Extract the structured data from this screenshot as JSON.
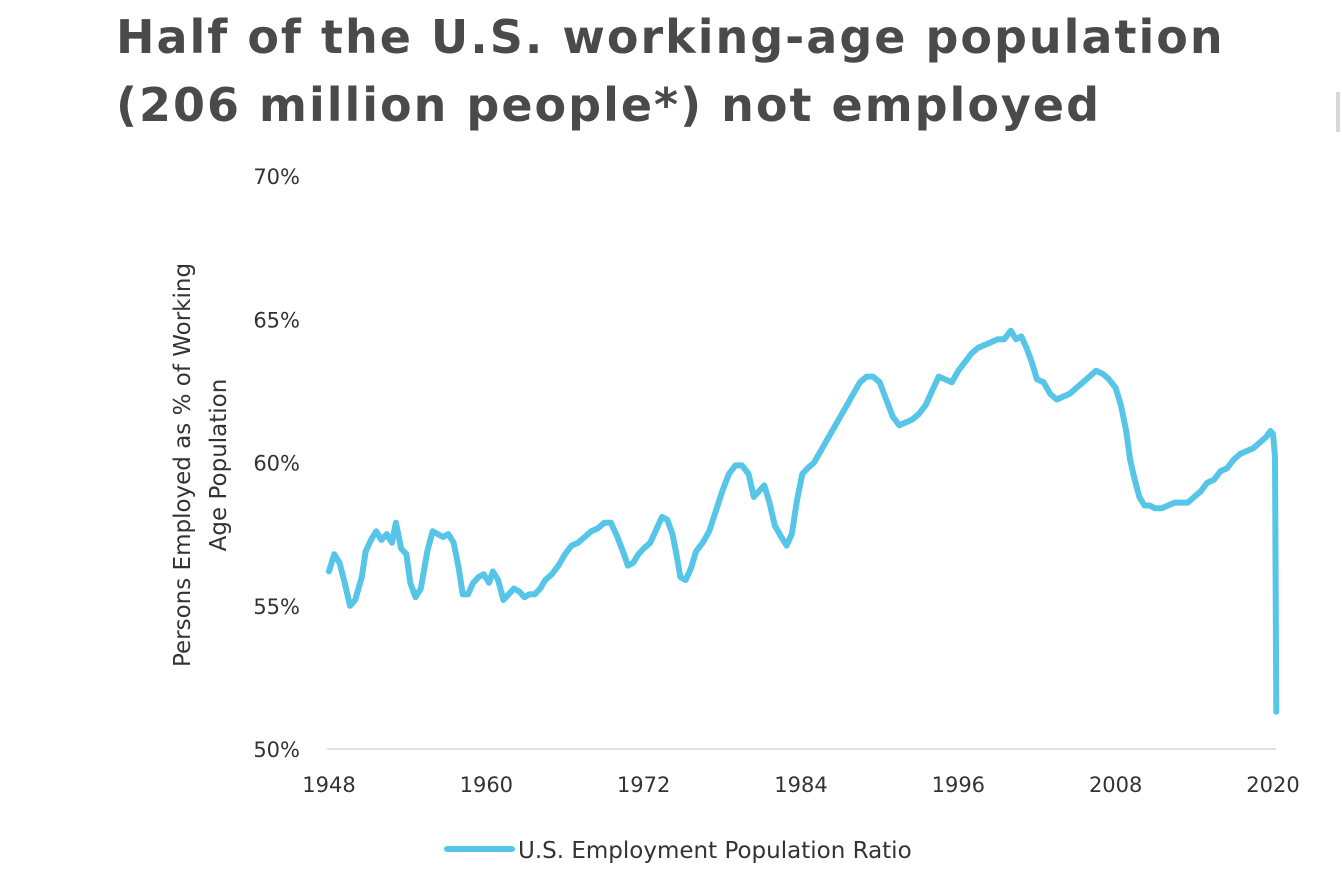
{
  "title": {
    "line1": "Half of the U.S. working-age population",
    "line2": "(206 million people*) not employed"
  },
  "colors": {
    "title": "#4a4a4a",
    "series": "#56c5e8",
    "axis": "#d9d9d9",
    "text": "#333333"
  },
  "chart_data": {
    "type": "line",
    "title": "",
    "ylabel_line1": "Persons Employed as % of Working",
    "ylabel_line2": "Age Population",
    "xlabel": "",
    "ylim": [
      50,
      70
    ],
    "xlim": [
      1948,
      2020
    ],
    "y_ticks": [
      50,
      55,
      60,
      65,
      70
    ],
    "y_tick_labels": [
      "50%",
      "55%",
      "60%",
      "65%",
      "70%"
    ],
    "x_ticks": [
      1948,
      1960,
      1972,
      1984,
      1996,
      2008,
      2020
    ],
    "x_tick_labels": [
      "1948",
      "1960",
      "1972",
      "1984",
      "1996",
      "2008",
      "2020"
    ],
    "grid": false,
    "legend_position": "bottom-center",
    "series": [
      {
        "name": "U.S. Employment Population Ratio",
        "color": "#56c5e8",
        "points": [
          [
            1948.0,
            56.2
          ],
          [
            1948.4,
            56.8
          ],
          [
            1948.8,
            56.5
          ],
          [
            1949.2,
            55.8
          ],
          [
            1949.6,
            55.0
          ],
          [
            1950.0,
            55.2
          ],
          [
            1950.5,
            56.0
          ],
          [
            1950.8,
            56.9
          ],
          [
            1951.2,
            57.3
          ],
          [
            1951.6,
            57.6
          ],
          [
            1952.0,
            57.3
          ],
          [
            1952.4,
            57.5
          ],
          [
            1952.8,
            57.2
          ],
          [
            1953.1,
            57.9
          ],
          [
            1953.5,
            57.0
          ],
          [
            1953.9,
            56.8
          ],
          [
            1954.2,
            55.8
          ],
          [
            1954.6,
            55.3
          ],
          [
            1955.0,
            55.6
          ],
          [
            1955.5,
            56.9
          ],
          [
            1955.9,
            57.6
          ],
          [
            1956.3,
            57.5
          ],
          [
            1956.7,
            57.4
          ],
          [
            1957.1,
            57.5
          ],
          [
            1957.5,
            57.2
          ],
          [
            1957.9,
            56.3
          ],
          [
            1958.2,
            55.4
          ],
          [
            1958.6,
            55.4
          ],
          [
            1959.0,
            55.8
          ],
          [
            1959.4,
            56.0
          ],
          [
            1959.8,
            56.1
          ],
          [
            1960.2,
            55.8
          ],
          [
            1960.5,
            56.2
          ],
          [
            1960.9,
            55.9
          ],
          [
            1961.3,
            55.2
          ],
          [
            1961.7,
            55.4
          ],
          [
            1962.1,
            55.6
          ],
          [
            1962.5,
            55.5
          ],
          [
            1962.9,
            55.3
          ],
          [
            1963.3,
            55.4
          ],
          [
            1963.7,
            55.4
          ],
          [
            1964.1,
            55.6
          ],
          [
            1964.5,
            55.9
          ],
          [
            1965.0,
            56.1
          ],
          [
            1965.5,
            56.4
          ],
          [
            1966.0,
            56.8
          ],
          [
            1966.5,
            57.1
          ],
          [
            1967.0,
            57.2
          ],
          [
            1967.5,
            57.4
          ],
          [
            1968.0,
            57.6
          ],
          [
            1968.5,
            57.7
          ],
          [
            1969.0,
            57.9
          ],
          [
            1969.5,
            57.9
          ],
          [
            1970.0,
            57.4
          ],
          [
            1970.5,
            56.8
          ],
          [
            1970.8,
            56.4
          ],
          [
            1971.2,
            56.5
          ],
          [
            1971.6,
            56.8
          ],
          [
            1972.0,
            57.0
          ],
          [
            1972.5,
            57.2
          ],
          [
            1973.0,
            57.7
          ],
          [
            1973.4,
            58.1
          ],
          [
            1973.8,
            58.0
          ],
          [
            1974.2,
            57.5
          ],
          [
            1974.5,
            56.8
          ],
          [
            1974.8,
            56.0
          ],
          [
            1975.2,
            55.9
          ],
          [
            1975.6,
            56.3
          ],
          [
            1976.0,
            56.9
          ],
          [
            1976.5,
            57.2
          ],
          [
            1977.0,
            57.6
          ],
          [
            1977.5,
            58.3
          ],
          [
            1978.0,
            59.0
          ],
          [
            1978.5,
            59.6
          ],
          [
            1979.0,
            59.9
          ],
          [
            1979.5,
            59.9
          ],
          [
            1980.0,
            59.6
          ],
          [
            1980.4,
            58.8
          ],
          [
            1980.8,
            59.0
          ],
          [
            1981.2,
            59.2
          ],
          [
            1981.6,
            58.6
          ],
          [
            1982.0,
            57.8
          ],
          [
            1982.5,
            57.4
          ],
          [
            1982.9,
            57.1
          ],
          [
            1983.3,
            57.5
          ],
          [
            1983.7,
            58.7
          ],
          [
            1984.1,
            59.6
          ],
          [
            1984.5,
            59.8
          ],
          [
            1985.0,
            60.0
          ],
          [
            1985.5,
            60.4
          ],
          [
            1986.0,
            60.8
          ],
          [
            1986.5,
            61.2
          ],
          [
            1987.0,
            61.6
          ],
          [
            1987.5,
            62.0
          ],
          [
            1988.0,
            62.4
          ],
          [
            1988.5,
            62.8
          ],
          [
            1989.0,
            63.0
          ],
          [
            1989.5,
            63.0
          ],
          [
            1990.0,
            62.8
          ],
          [
            1990.5,
            62.2
          ],
          [
            1991.0,
            61.6
          ],
          [
            1991.5,
            61.3
          ],
          [
            1992.0,
            61.4
          ],
          [
            1992.5,
            61.5
          ],
          [
            1993.0,
            61.7
          ],
          [
            1993.5,
            62.0
          ],
          [
            1994.0,
            62.5
          ],
          [
            1994.5,
            63.0
          ],
          [
            1995.0,
            62.9
          ],
          [
            1995.5,
            62.8
          ],
          [
            1996.0,
            63.2
          ],
          [
            1996.5,
            63.5
          ],
          [
            1997.0,
            63.8
          ],
          [
            1997.5,
            64.0
          ],
          [
            1998.0,
            64.1
          ],
          [
            1998.5,
            64.2
          ],
          [
            1999.0,
            64.3
          ],
          [
            1999.5,
            64.3
          ],
          [
            2000.0,
            64.6
          ],
          [
            2000.4,
            64.3
          ],
          [
            2000.8,
            64.4
          ],
          [
            2001.2,
            64.0
          ],
          [
            2001.6,
            63.5
          ],
          [
            2002.0,
            62.9
          ],
          [
            2002.5,
            62.8
          ],
          [
            2003.0,
            62.4
          ],
          [
            2003.5,
            62.2
          ],
          [
            2004.0,
            62.3
          ],
          [
            2004.5,
            62.4
          ],
          [
            2005.0,
            62.6
          ],
          [
            2005.5,
            62.8
          ],
          [
            2006.0,
            63.0
          ],
          [
            2006.5,
            63.2
          ],
          [
            2007.0,
            63.1
          ],
          [
            2007.5,
            62.9
          ],
          [
            2008.0,
            62.6
          ],
          [
            2008.4,
            62.0
          ],
          [
            2008.8,
            61.1
          ],
          [
            2009.1,
            60.1
          ],
          [
            2009.4,
            59.5
          ],
          [
            2009.8,
            58.8
          ],
          [
            2010.2,
            58.5
          ],
          [
            2010.6,
            58.5
          ],
          [
            2011.0,
            58.4
          ],
          [
            2011.5,
            58.4
          ],
          [
            2012.0,
            58.5
          ],
          [
            2012.5,
            58.6
          ],
          [
            2013.0,
            58.6
          ],
          [
            2013.5,
            58.6
          ],
          [
            2014.0,
            58.8
          ],
          [
            2014.5,
            59.0
          ],
          [
            2015.0,
            59.3
          ],
          [
            2015.5,
            59.4
          ],
          [
            2016.0,
            59.7
          ],
          [
            2016.5,
            59.8
          ],
          [
            2017.0,
            60.1
          ],
          [
            2017.5,
            60.3
          ],
          [
            2018.0,
            60.4
          ],
          [
            2018.5,
            60.5
          ],
          [
            2019.0,
            60.7
          ],
          [
            2019.5,
            60.9
          ],
          [
            2019.8,
            61.1
          ],
          [
            2020.0,
            61.0
          ],
          [
            2020.15,
            60.2
          ],
          [
            2020.25,
            51.3
          ]
        ]
      }
    ]
  }
}
